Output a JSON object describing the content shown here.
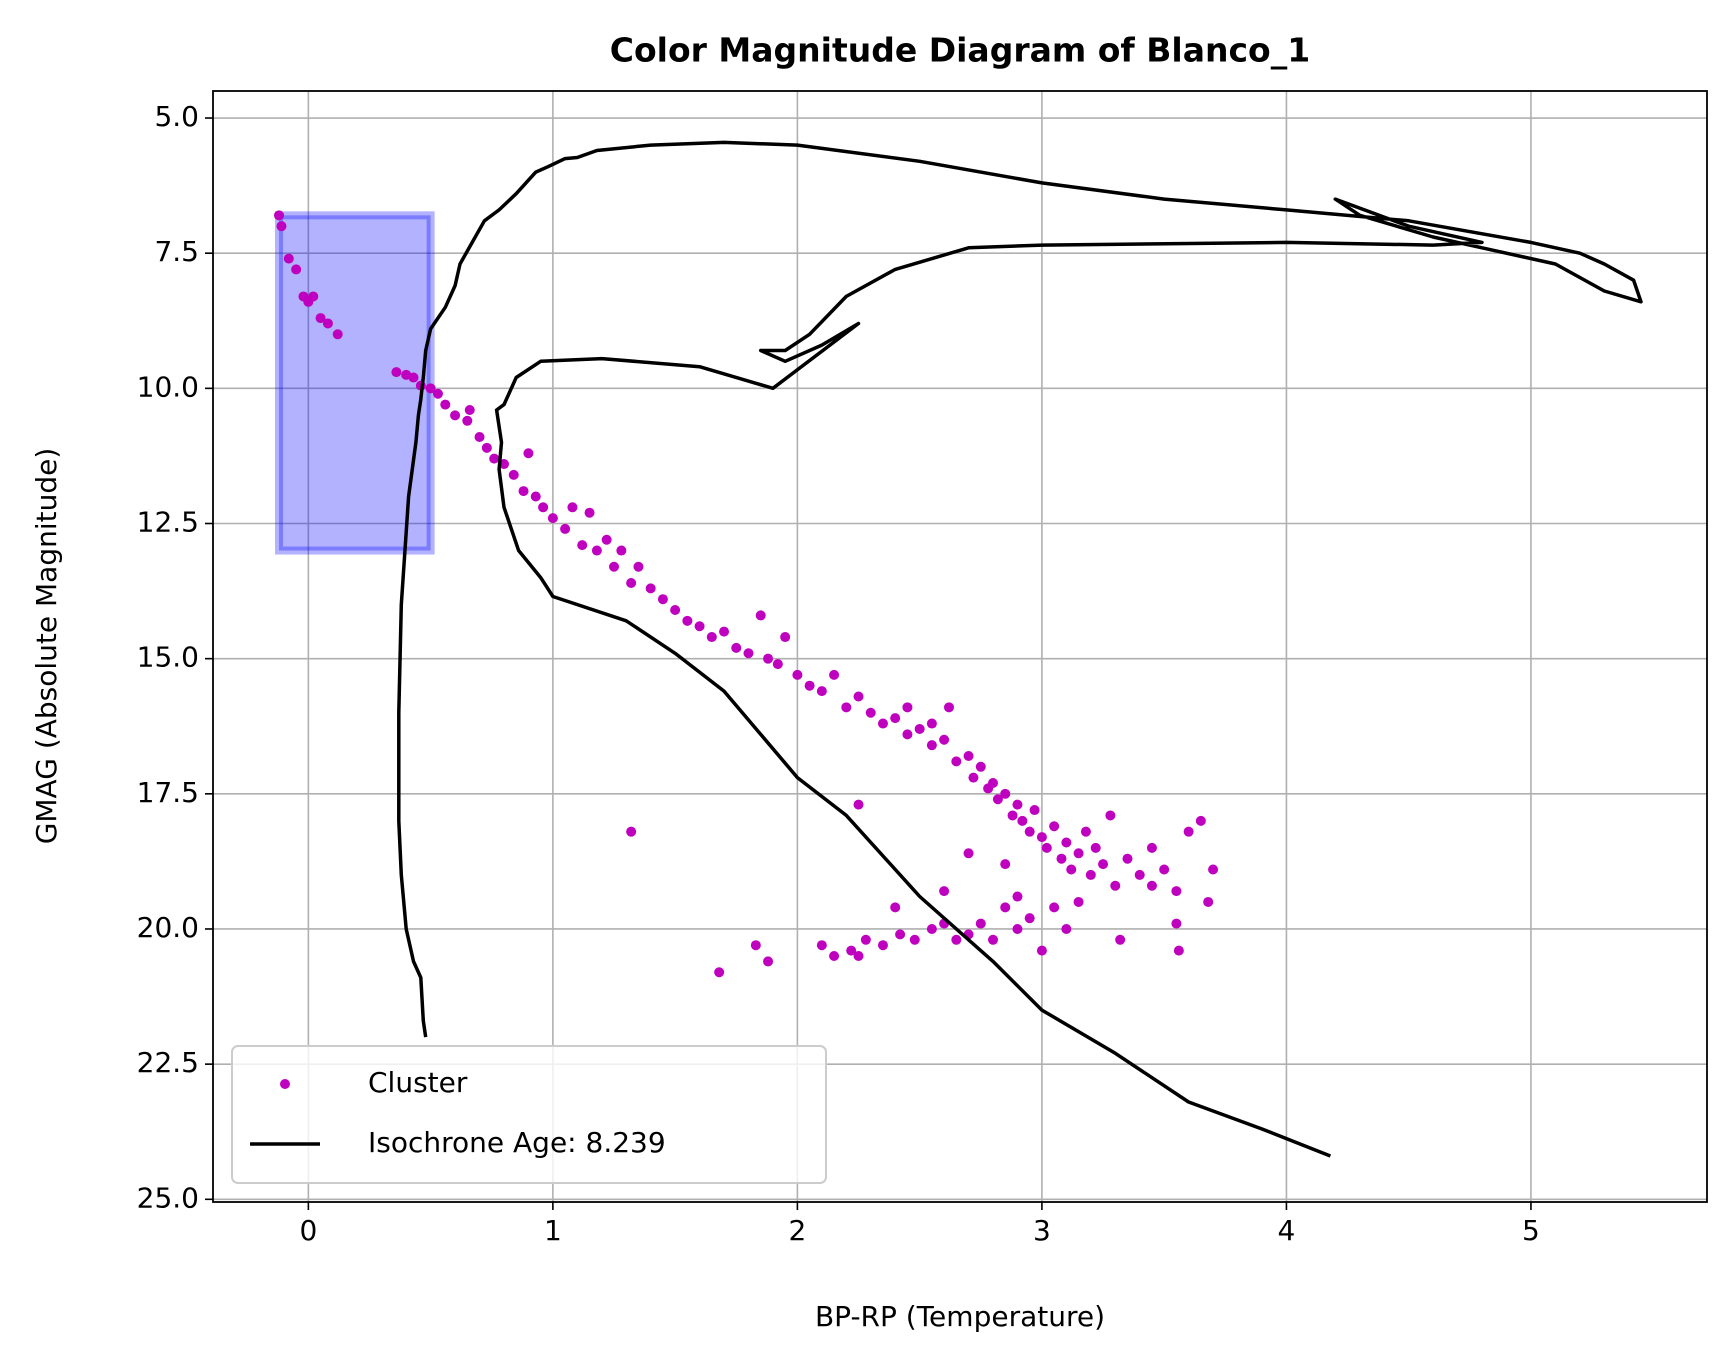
{
  "chart_data": {
    "type": "scatter",
    "title": "Color Magnitude Diagram of Blanco_1",
    "x_label": "BP-RP (Temperature)",
    "y_label": "GMAG (Absolute Magnitude)",
    "xlim": [
      -0.39,
      5.72
    ],
    "ylim": [
      25.05,
      4.5
    ],
    "xticks": [
      0,
      1,
      2,
      3,
      4,
      5
    ],
    "yticks": [
      {
        "value": 5,
        "label": "5.0"
      },
      7.5,
      {
        "value": 10,
        "label": "10.0"
      },
      12.5,
      {
        "value": 15,
        "label": "15.0"
      },
      17.5,
      {
        "value": 20,
        "label": "20.0"
      },
      22.5,
      {
        "value": 25,
        "label": "25.0"
      }
    ],
    "grid": true,
    "legend": "lower left",
    "highlight": {
      "x": [
        -0.12,
        0.5
      ],
      "y": [
        6.8,
        13.0
      ],
      "color": "#0000ff"
    },
    "series": [
      {
        "name": "Cluster",
        "type": "scatter",
        "color": "#bf00bf",
        "x": [
          -0.12,
          -0.11,
          -0.08,
          -0.05,
          -0.02,
          0.0,
          0.02,
          0.05,
          0.08,
          0.12,
          0.36,
          0.4,
          0.43,
          0.46,
          0.5,
          0.53,
          0.56,
          0.6,
          0.65,
          0.66,
          0.7,
          0.73,
          0.76,
          0.8,
          0.84,
          0.88,
          0.9,
          0.93,
          0.96,
          1.0,
          1.05,
          1.08,
          1.12,
          1.15,
          1.18,
          1.22,
          1.25,
          1.28,
          1.32,
          1.35,
          1.4,
          1.45,
          1.5,
          1.55,
          1.6,
          1.65,
          1.7,
          1.75,
          1.8,
          1.85,
          1.88,
          1.92,
          1.95,
          2.0,
          2.05,
          2.1,
          2.15,
          2.2,
          2.25,
          2.3,
          2.35,
          2.4,
          2.45,
          2.5,
          2.55,
          2.6,
          2.65,
          2.7,
          2.72,
          2.75,
          2.78,
          2.8,
          2.82,
          2.85,
          2.88,
          2.9,
          2.92,
          2.95,
          2.97,
          3.0,
          3.02,
          3.05,
          3.08,
          3.1,
          3.12,
          3.15,
          3.18,
          3.2,
          3.22,
          3.25,
          3.28,
          3.3,
          3.35,
          3.4,
          3.45,
          3.5,
          3.55,
          3.6,
          3.65,
          3.7,
          3.68,
          3.56,
          3.55,
          3.32,
          3.0,
          2.95,
          2.9,
          2.85,
          2.8,
          2.75,
          2.7,
          2.65,
          2.6,
          2.55,
          2.48,
          2.42,
          2.4,
          2.35,
          2.28,
          2.25,
          2.22,
          2.15,
          2.1,
          1.88,
          1.83,
          1.68,
          1.32,
          2.25,
          2.6,
          2.7,
          2.85,
          2.9,
          3.05,
          3.1,
          3.15,
          2.62,
          2.45,
          2.55,
          3.45
        ],
        "values": [
          6.8,
          7.0,
          7.6,
          7.8,
          8.3,
          8.4,
          8.3,
          8.7,
          8.8,
          9.0,
          9.7,
          9.75,
          9.8,
          9.95,
          10.0,
          10.1,
          10.3,
          10.5,
          10.6,
          10.4,
          10.9,
          11.1,
          11.3,
          11.4,
          11.6,
          11.9,
          11.2,
          12.0,
          12.2,
          12.4,
          12.6,
          12.2,
          12.9,
          12.3,
          13.0,
          12.8,
          13.3,
          13.0,
          13.6,
          13.3,
          13.7,
          13.9,
          14.1,
          14.3,
          14.4,
          14.6,
          14.5,
          14.8,
          14.9,
          14.2,
          15.0,
          15.1,
          14.6,
          15.3,
          15.5,
          15.6,
          15.3,
          15.9,
          15.7,
          16.0,
          16.2,
          16.1,
          16.4,
          16.3,
          16.6,
          16.5,
          16.9,
          16.8,
          17.2,
          17.0,
          17.4,
          17.3,
          17.6,
          17.5,
          17.9,
          17.7,
          18.0,
          18.2,
          17.8,
          18.3,
          18.5,
          18.1,
          18.7,
          18.4,
          18.9,
          18.6,
          18.2,
          19.0,
          18.5,
          18.8,
          17.9,
          19.2,
          18.7,
          19.0,
          18.5,
          18.9,
          19.3,
          18.2,
          18.0,
          18.9,
          19.5,
          20.4,
          19.9,
          20.2,
          20.4,
          19.8,
          20.0,
          19.6,
          20.2,
          19.9,
          20.1,
          20.2,
          19.9,
          20.0,
          20.2,
          20.1,
          19.6,
          20.3,
          20.2,
          20.5,
          20.4,
          20.5,
          20.3,
          20.6,
          20.3,
          20.8,
          18.2,
          17.7,
          19.3,
          18.6,
          18.8,
          19.4,
          19.6,
          20.0,
          19.5,
          15.9,
          15.9,
          16.2,
          19.2
        ]
      },
      {
        "name": "Isochrone Age: 8.239",
        "type": "line",
        "color": "#000000",
        "x": [
          0.48,
          0.47,
          0.46,
          0.43,
          0.4,
          0.38,
          0.37,
          0.37,
          0.38,
          0.41,
          0.44,
          0.45,
          0.46,
          0.47,
          0.48,
          0.5,
          0.56,
          0.6,
          0.62,
          0.67,
          0.72,
          0.78,
          0.85,
          0.93,
          0.98,
          1.05,
          1.1,
          1.18,
          1.4,
          1.7,
          2.0,
          2.5,
          3.0,
          3.5,
          4.0,
          4.5,
          5.0,
          5.2,
          5.3,
          5.42,
          5.45,
          5.3,
          5.1,
          4.8,
          4.6,
          4.3,
          4.2,
          4.5,
          4.8,
          4.6,
          4.0,
          3.0,
          2.7,
          2.4,
          2.2,
          2.05,
          1.95,
          1.85,
          1.95,
          2.1,
          2.25,
          1.9,
          1.6,
          1.2,
          0.95,
          0.85,
          0.8,
          0.77,
          0.79,
          0.78,
          0.8,
          0.86,
          0.95,
          1.0,
          1.3,
          1.5,
          1.7,
          2.0,
          2.2,
          2.5,
          2.8,
          3.0,
          3.3,
          3.6,
          3.9,
          4.18
        ],
        "values": [
          22.0,
          21.7,
          20.9,
          20.6,
          20.0,
          19.0,
          18.0,
          16.0,
          14.0,
          12.0,
          11.0,
          10.5,
          10.2,
          9.8,
          9.3,
          8.9,
          8.5,
          8.1,
          7.7,
          7.3,
          6.9,
          6.7,
          6.4,
          6.0,
          5.9,
          5.75,
          5.73,
          5.6,
          5.5,
          5.45,
          5.5,
          5.8,
          6.2,
          6.5,
          6.7,
          6.9,
          7.3,
          7.5,
          7.7,
          8.0,
          8.4,
          8.2,
          7.7,
          7.4,
          7.2,
          6.8,
          6.5,
          7.0,
          7.3,
          7.35,
          7.3,
          7.35,
          7.4,
          7.8,
          8.3,
          9.0,
          9.3,
          9.3,
          9.5,
          9.2,
          8.8,
          10.0,
          9.6,
          9.45,
          9.5,
          9.8,
          10.3,
          10.4,
          11.0,
          11.5,
          12.2,
          13.0,
          13.5,
          13.85,
          14.3,
          14.9,
          15.6,
          17.2,
          17.9,
          19.4,
          20.6,
          21.5,
          22.3,
          23.2,
          23.7,
          24.2
        ]
      }
    ]
  }
}
